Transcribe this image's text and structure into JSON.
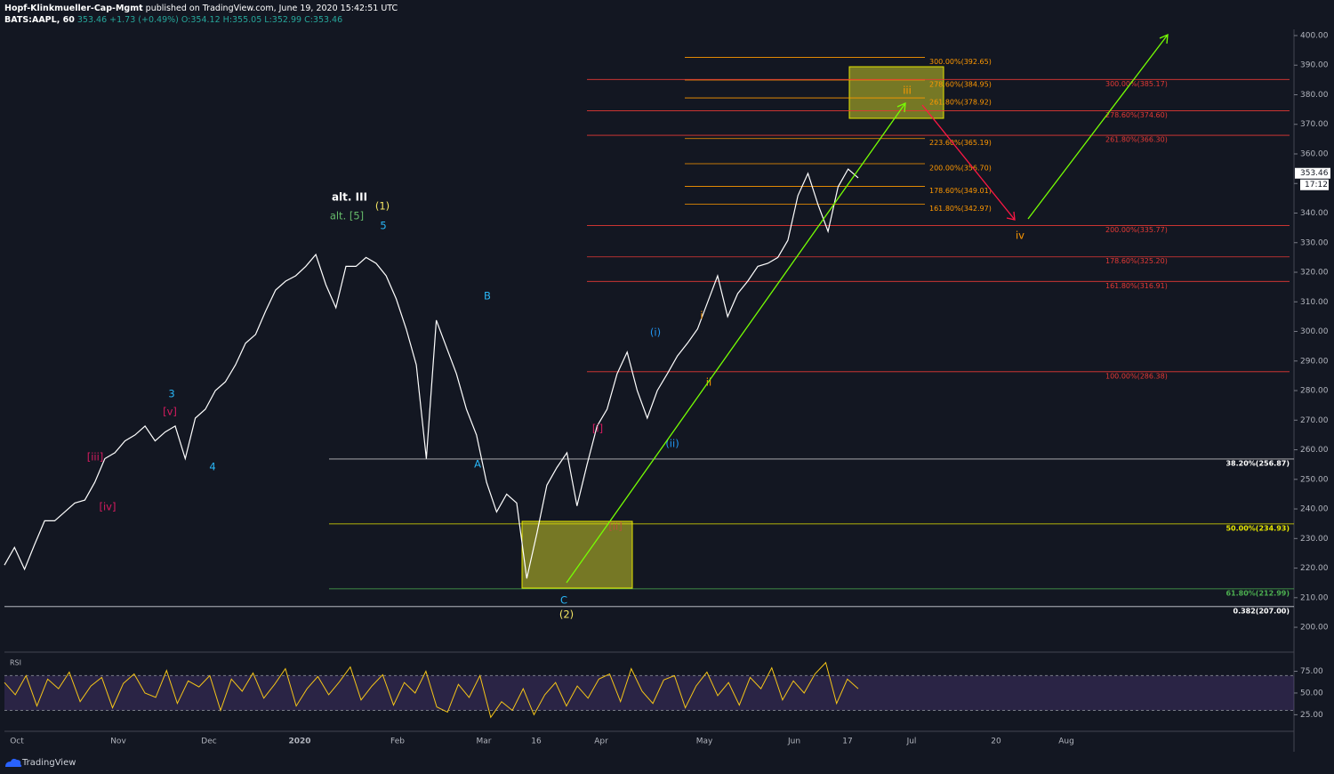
{
  "header": {
    "author": "Hopf-Klinkmueller-Cap-Mgmt",
    "published": " published on TradingView.com, June 19, 2020 15:42:51 UTC",
    "symbol": "BATS:AAPL, 60",
    "price": "353.46",
    "change": "+1.73 (+0.49%)",
    "open": "O:354.12",
    "high": "H:355.05",
    "low": "L:352.99",
    "close": "C:353.46"
  },
  "footer": {
    "brand": "TradingView"
  },
  "chart_data": [
    {
      "type": "line",
      "color": "#ffffff",
      "values": [
        221,
        227,
        219.6,
        228,
        236,
        236,
        239,
        242,
        243,
        249,
        257,
        259,
        263,
        265,
        268,
        263,
        266,
        268,
        257,
        270.7,
        273.7,
        280,
        283,
        288.7,
        296,
        299,
        306.8,
        314,
        317,
        318.8,
        322,
        326,
        315.8,
        308,
        322,
        322,
        325,
        323,
        318.8,
        311,
        300.8,
        288.7,
        257,
        303.8,
        294.7,
        285.7,
        273.7,
        265,
        249,
        239,
        245,
        242,
        216.5,
        231.6,
        248,
        254,
        259,
        241,
        255,
        268,
        273.7,
        285.7,
        293,
        280,
        270.7,
        280,
        285.7,
        291.7,
        296,
        300.8,
        309.8,
        318.8,
        305,
        312.8,
        317,
        322,
        323,
        325,
        330.8,
        345.9,
        353.4,
        342.9,
        333.8,
        348.9,
        354.9,
        351.9
      ],
      "ylim": [
        191.6,
        402.1
      ],
      "yticks": [
        {
          "value": 200,
          "label": "200.00"
        },
        {
          "value": 210,
          "label": "210.00"
        },
        {
          "value": 220,
          "label": "220.00"
        },
        {
          "value": 230,
          "label": "230.00"
        },
        {
          "value": 240,
          "label": "240.00"
        },
        {
          "value": 250,
          "label": "250.00"
        },
        {
          "value": 260,
          "label": "260.00"
        },
        {
          "value": 270,
          "label": "270.00"
        },
        {
          "value": 280,
          "label": "280.00"
        },
        {
          "value": 290,
          "label": "290.00"
        },
        {
          "value": 300,
          "label": "300.00"
        },
        {
          "value": 310,
          "label": "310.00"
        },
        {
          "value": 320,
          "label": "320.00"
        },
        {
          "value": 330,
          "label": "330.00"
        },
        {
          "value": 340,
          "label": "340.00"
        },
        {
          "value": 350,
          "label": "350.00"
        },
        {
          "value": 360,
          "label": "360.00"
        },
        {
          "value": 370,
          "label": "370.00"
        },
        {
          "value": 380,
          "label": "380.00"
        },
        {
          "value": 390,
          "label": "390.00"
        },
        {
          "value": 400,
          "label": "400.00"
        }
      ],
      "xtick_labels": [
        "Oct",
        "Nov",
        "Dec",
        "2020",
        "Feb",
        "Mar",
        "16",
        "Apr",
        "May",
        "Jun",
        "17",
        "Jul",
        "20",
        "Aug"
      ],
      "last_price": {
        "value": 353.46,
        "label": "353.46"
      },
      "countdown": "17:12",
      "fib_levels": [
        {
          "label": "300.00%(392.65)",
          "value": 392.65,
          "color": "#ff9800"
        },
        {
          "label": "278.60%(384.95)",
          "value": 384.95,
          "color": "#ff9800"
        },
        {
          "label": "261.80%(378.92)",
          "value": 378.92,
          "color": "#ff9800"
        },
        {
          "label": "223.60%(365.19)",
          "value": 365.19,
          "color": "#ff9800"
        },
        {
          "label": "200.00%(356.70)",
          "value": 356.7,
          "color": "#ff9800"
        },
        {
          "label": "178.60%(349.01)",
          "value": 349.01,
          "color": "#ff9800"
        },
        {
          "label": "161.80%(342.97)",
          "value": 342.97,
          "color": "#ff9800"
        },
        {
          "label": "300.00%(385.17)",
          "value": 385.17,
          "color": "#e53935"
        },
        {
          "label": "278.60%(374.60)",
          "value": 374.6,
          "color": "#e53935"
        },
        {
          "label": "261.80%(366.30)",
          "value": 366.3,
          "color": "#e53935"
        },
        {
          "label": "200.00%(335.77)",
          "value": 335.77,
          "color": "#e53935"
        },
        {
          "label": "178.60%(325.20)",
          "value": 325.2,
          "color": "#e53935"
        },
        {
          "label": "161.80%(316.91)",
          "value": 316.91,
          "color": "#e53935"
        },
        {
          "label": "100.00%(286.38)",
          "value": 286.38,
          "color": "#e53935"
        },
        {
          "label": "38.20%(256.87)",
          "value": 256.87,
          "color": "#bdbdbd"
        },
        {
          "label": "50.00%(234.93)",
          "value": 234.93,
          "color": "#e6e600"
        },
        {
          "label": "61.80%(212.99)",
          "value": 212.99,
          "color": "#4caf50"
        },
        {
          "label": "0.382(207.00)",
          "value": 207.0,
          "color": "#d1d4dc"
        }
      ],
      "annotations": [
        {
          "text": "alt. III",
          "color": "#ffffff"
        },
        {
          "text": "(1)",
          "color": "#f5e663"
        },
        {
          "text": "alt. [5]",
          "color": "#66bb6a"
        },
        {
          "text": "5",
          "color": "#29b6f6"
        },
        {
          "text": "B",
          "color": "#29b6f6"
        },
        {
          "text": "A",
          "color": "#29b6f6"
        },
        {
          "text": "C",
          "color": "#29b6f6"
        },
        {
          "text": "(2)",
          "color": "#f5e663"
        },
        {
          "text": "3",
          "color": "#29b6f6"
        },
        {
          "text": "[v]",
          "color": "#d81b60"
        },
        {
          "text": "[iii]",
          "color": "#d81b60"
        },
        {
          "text": "[iv]",
          "color": "#d81b60"
        },
        {
          "text": "4",
          "color": "#29b6f6"
        },
        {
          "text": "[i]",
          "color": "#d81b60"
        },
        {
          "text": "[ii]",
          "color": "#b5533c"
        },
        {
          "text": "(i)",
          "color": "#2196f3"
        },
        {
          "text": "(ii)",
          "color": "#2196f3"
        },
        {
          "text": "i",
          "color": "#ff9800"
        },
        {
          "text": "ii",
          "color": "#ff9800"
        },
        {
          "text": "iii",
          "color": "#ff9800"
        },
        {
          "text": "iv",
          "color": "#ff9800"
        }
      ]
    },
    {
      "type": "line",
      "title": "RSI",
      "color": "#f5c518",
      "values": [
        62,
        48,
        70,
        35,
        66,
        55,
        74,
        40,
        58,
        68,
        33,
        61,
        72,
        50,
        45,
        76,
        38,
        64,
        57,
        70,
        30,
        66,
        52,
        73,
        44,
        60,
        78,
        35,
        55,
        69,
        48,
        63,
        80,
        42,
        58,
        71,
        36,
        62,
        50,
        75,
        34,
        28,
        60,
        45,
        70,
        22,
        40,
        30,
        55,
        25,
        48,
        62,
        35,
        58,
        44,
        66,
        72,
        40,
        78,
        52,
        38,
        65,
        70,
        33,
        58,
        74,
        47,
        62,
        36,
        68,
        55,
        79,
        42,
        64,
        50,
        72,
        85,
        38,
        66,
        55
      ],
      "ylim": [
        8,
        95
      ],
      "yticks": [
        {
          "value": 25,
          "label": "25.00"
        },
        {
          "value": 50,
          "label": "50.00"
        },
        {
          "value": 75,
          "label": "75.00"
        }
      ],
      "band": [
        30,
        70
      ]
    }
  ]
}
